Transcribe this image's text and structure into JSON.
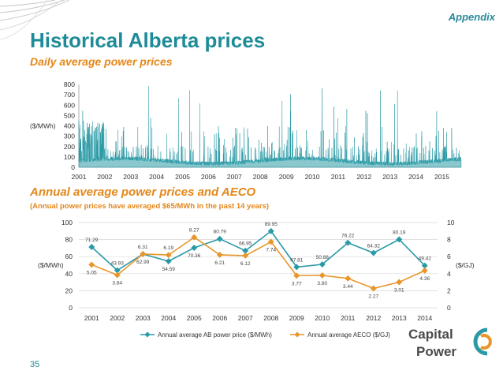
{
  "header": {
    "section_tag": "Appendix",
    "title": "Historical Alberta prices",
    "subtitle": "Daily average power prices"
  },
  "section2": {
    "title": "Annual average power prices and AECO",
    "subtitle": "(Annual power prices have averaged $65/MWh in the past 14 years)"
  },
  "footer": {
    "page_number": "35"
  },
  "logo": {
    "line1": "Capital",
    "line2": "Power",
    "icon": "capital-power-logo-icon"
  },
  "colors": {
    "teal": "#2a9aa6",
    "orange": "#e8962c",
    "title_teal": "#1e8c98"
  },
  "chart_data": [
    {
      "type": "area",
      "title": "",
      "ylabel": "($/MWh)",
      "xlabel": "",
      "ylim": [
        0,
        800
      ],
      "yticks": [
        0,
        100,
        200,
        300,
        400,
        500,
        600,
        700,
        800
      ],
      "xticks": [
        "2001",
        "2002",
        "2003",
        "2004",
        "2005",
        "2006",
        "2007",
        "2008",
        "2009",
        "2010",
        "2011",
        "2012",
        "2013",
        "2014",
        "2015"
      ],
      "x_range": [
        "2001-01-01",
        "2015-09-30"
      ],
      "series": [
        {
          "values": []
        }
      ],
      "grid": false,
      "legend": "none"
    },
    {
      "type": "line",
      "title": "",
      "categories": [
        "2001",
        "2002",
        "2003",
        "2004",
        "2005",
        "2006",
        "2007",
        "2008",
        "2009",
        "2010",
        "2011",
        "2012",
        "2013",
        "2014"
      ],
      "ylabel_left": "($/MWh)",
      "ylabel_right": "($/GJ)",
      "ylim_left": [
        0,
        100
      ],
      "ylim_right": [
        0,
        10
      ],
      "yticks_left": [
        "0",
        "20",
        "40",
        "60",
        "80",
        "100"
      ],
      "yticks_right": [
        "0",
        "2",
        "4",
        "6",
        "8",
        "10"
      ],
      "series": [
        {
          "name": "Annual average AB power price ($/MWh)",
          "axis": "left",
          "values": [
            71.29,
            43.93,
            62.99,
            54.59,
            70.36,
            80.79,
            66.95,
            89.95,
            47.81,
            50.88,
            76.22,
            64.32,
            80.19,
            49.42
          ],
          "labels": [
            "71.29",
            "43.93",
            "62.99",
            "54.59",
            "70.36",
            "80.79",
            "66.95",
            "89.95",
            "47.81",
            "50.88",
            "76.22",
            "64.32",
            "80.19",
            "49.42"
          ]
        },
        {
          "name": "Annual average AECO ($/GJ)",
          "axis": "right",
          "values": [
            5.05,
            3.84,
            6.31,
            6.19,
            8.27,
            6.21,
            6.12,
            7.74,
            3.77,
            3.8,
            3.44,
            2.27,
            3.01,
            4.36
          ],
          "labels": [
            "5.05",
            "3.84",
            "6.31",
            "6.19",
            "8.27",
            "6.21",
            "6.12",
            "7.74",
            "3.77",
            "3.80",
            "3.44",
            "2.27",
            "3.01",
            "4.36"
          ]
        }
      ],
      "grid": true,
      "legend": "bottom"
    }
  ]
}
